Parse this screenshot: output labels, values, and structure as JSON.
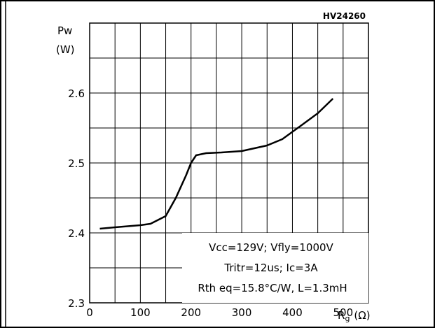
{
  "chart_data": {
    "type": "line",
    "figure_id": "HV24260",
    "ylabel_line1": "Pw",
    "ylabel_line2": "(W)",
    "xlabel_main": "R",
    "xlabel_sub": "g",
    "xlabel_unit": "(Ω)",
    "xlim": [
      0,
      550
    ],
    "ylim": [
      2.3,
      2.7
    ],
    "x_ticks": [
      0,
      100,
      200,
      300,
      400,
      500
    ],
    "x_tick_labels": [
      "0",
      "100",
      "200",
      "300",
      "400",
      "500"
    ],
    "y_ticks": [
      2.3,
      2.4,
      2.5,
      2.6
    ],
    "y_tick_labels": [
      "2.3",
      "2.4",
      "2.5",
      "2.6"
    ],
    "grid": true,
    "series": [
      {
        "x": [
          20,
          50,
          100,
          120,
          150,
          170,
          190,
          200,
          210,
          230,
          260,
          300,
          350,
          380,
          420,
          450,
          480
        ],
        "y": [
          2.406,
          2.408,
          2.411,
          2.413,
          2.424,
          2.45,
          2.482,
          2.5,
          2.511,
          2.514,
          2.515,
          2.517,
          2.525,
          2.534,
          2.555,
          2.571,
          2.592
        ]
      }
    ],
    "annotations": [
      "Vcc=129V; Vfly=1000V",
      "Tritr=12us; Ic=3A",
      "Rth eq=15.8°C/W, L=1.3mH"
    ],
    "color": "#000000"
  }
}
